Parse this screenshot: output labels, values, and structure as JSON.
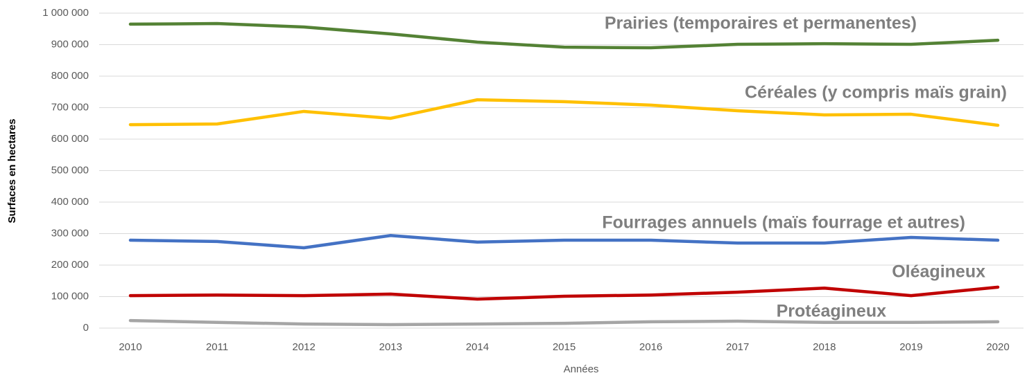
{
  "chart_data": {
    "type": "line",
    "x_label": "Années",
    "y_label": "Surfaces en hectares",
    "categories": [
      "2010",
      "2011",
      "2012",
      "2013",
      "2014",
      "2015",
      "2016",
      "2017",
      "2018",
      "2019",
      "2020"
    ],
    "series": [
      {
        "name": "Prairies (temporaires et permanentes)",
        "color": "#548235",
        "values": [
          965000,
          967000,
          956000,
          934000,
          908000,
          892000,
          890000,
          901000,
          903000,
          901000,
          914000
        ]
      },
      {
        "name": "Céréales (y compris maïs grain)",
        "color": "#ffc000",
        "values": [
          646000,
          648000,
          688000,
          666000,
          725000,
          719000,
          708000,
          690000,
          677000,
          679000,
          644000
        ]
      },
      {
        "name": "Fourrages annuels (maïs fourrage et autres)",
        "color": "#4472c4",
        "values": [
          279000,
          275000,
          255000,
          294000,
          273000,
          279000,
          279000,
          270000,
          270000,
          288000,
          279000
        ]
      },
      {
        "name": "Oléagineux",
        "color": "#c00000",
        "values": [
          103000,
          105000,
          103000,
          108000,
          92000,
          101000,
          105000,
          114000,
          127000,
          103000,
          130000
        ]
      },
      {
        "name": "Protéagineux",
        "color": "#a5a5a5",
        "values": [
          24000,
          18000,
          13000,
          11000,
          13000,
          15000,
          20000,
          22000,
          18000,
          18000,
          20000
        ]
      }
    ],
    "ylim": [
      0,
      1000000
    ],
    "yticks": [
      0,
      {
        "value": 100000,
        "label": "100 000"
      },
      {
        "value": 200000,
        "label": "200 000"
      },
      {
        "value": 300000,
        "label": "300 000"
      },
      {
        "value": 400000,
        "label": "400 000"
      },
      {
        "value": 500000,
        "label": "500 000"
      },
      {
        "value": 600000,
        "label": "600 000"
      },
      {
        "value": 700000,
        "label": "700 000"
      },
      {
        "value": 800000,
        "label": "800 000"
      },
      {
        "value": 900000,
        "label": "900 000"
      },
      {
        "value": 1000000,
        "label": "1 000 000"
      }
    ],
    "grid": true
  }
}
